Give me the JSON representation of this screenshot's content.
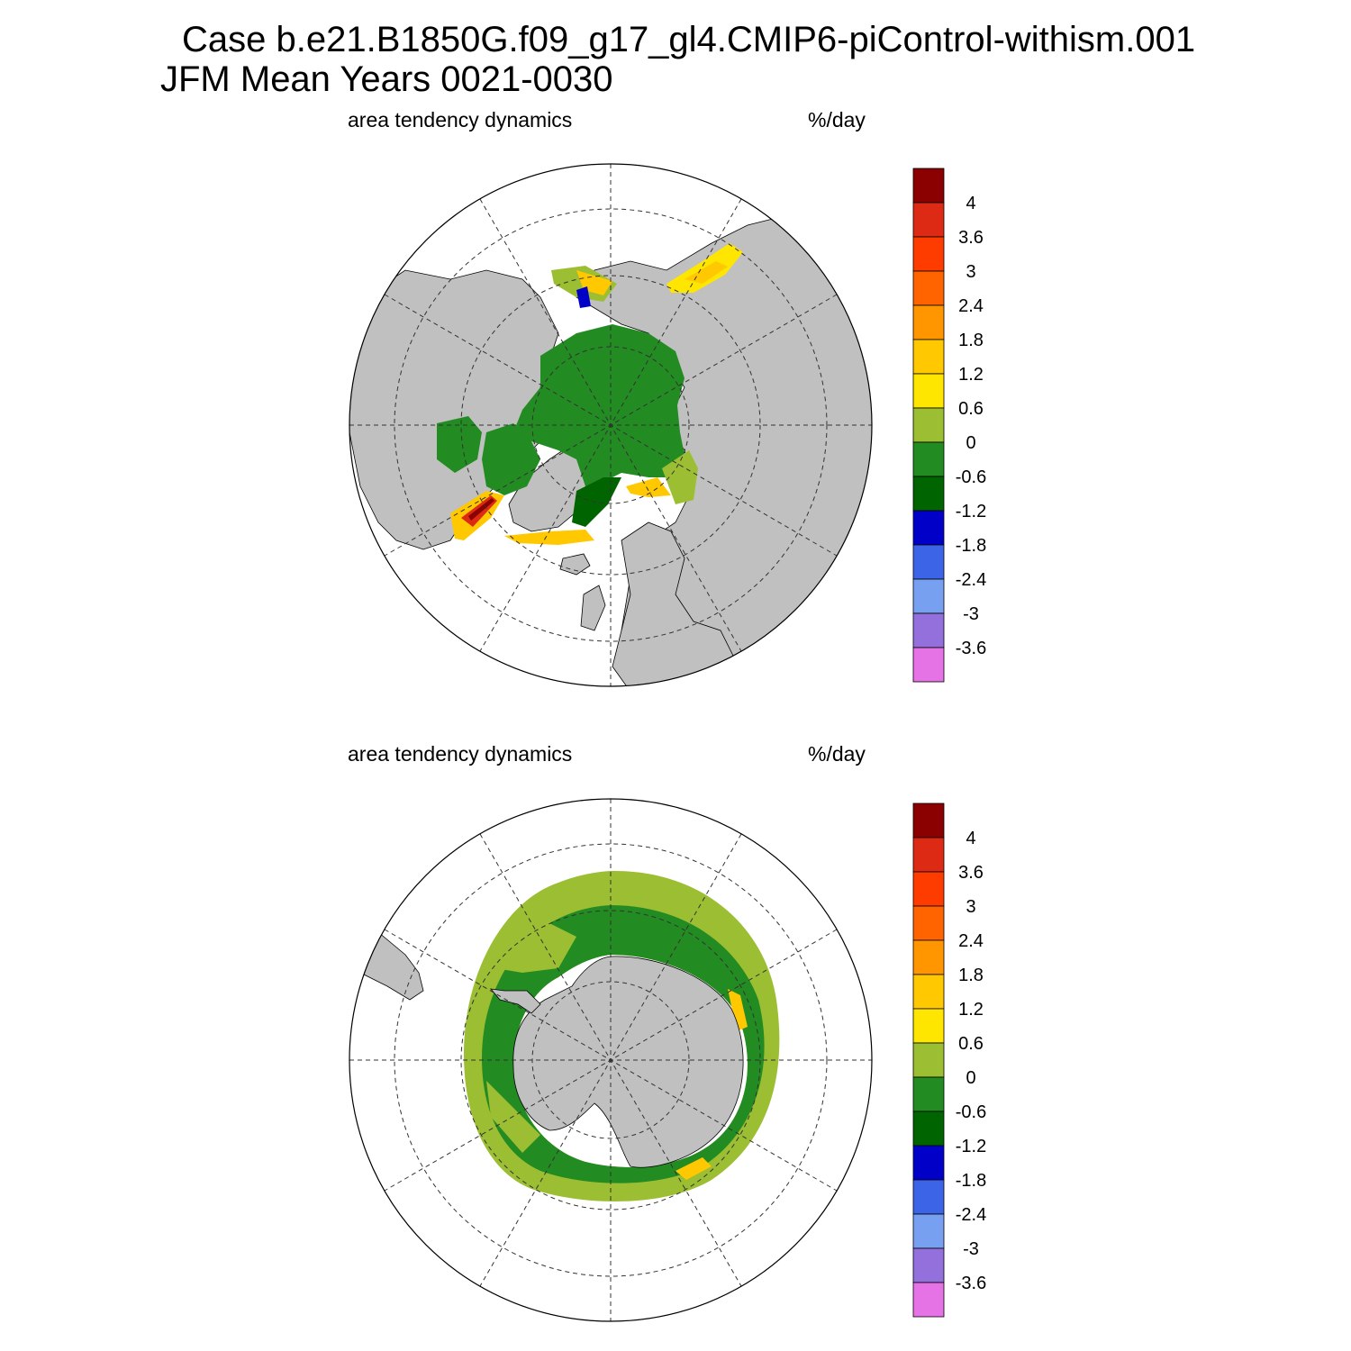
{
  "header": {
    "case_line": "Case b.e21.B1850G.f09_g17_gl4.CMIP6-piControl-withism.001",
    "period_line": "JFM Mean     Years 0021-0030"
  },
  "panels": [
    {
      "id": "north",
      "variable": "area tendency dynamics",
      "units": "%/day",
      "hemisphere": "Northern Hemisphere polar stereographic"
    },
    {
      "id": "south",
      "variable": "area tendency dynamics",
      "units": "%/day",
      "hemisphere": "Southern Hemisphere polar stereographic"
    }
  ],
  "colorbar": {
    "levels": [
      "4",
      "3.6",
      "3",
      "2.4",
      "1.8",
      "1.2",
      "0.6",
      "0",
      "-0.6",
      "-1.2",
      "-1.8",
      "-2.4",
      "-3",
      "-3.6"
    ],
    "colors": [
      "#8b0000",
      "#dc2a14",
      "#ff3c00",
      "#ff6400",
      "#ff9600",
      "#ffc800",
      "#ffe600",
      "#9bbe32",
      "#228b22",
      "#006400",
      "#0000c8",
      "#3c64e6",
      "#78a0f0",
      "#9370db",
      "#e673e6"
    ]
  },
  "map_style": {
    "land_color": "#c0c0c0",
    "ocean_color": "#ffffff",
    "grid": "dashed lat/lon lines"
  }
}
